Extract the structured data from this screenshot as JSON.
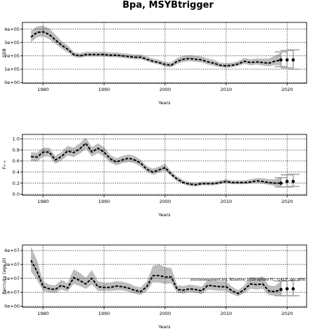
{
  "title": "Bpa, MSYBtrigger",
  "annotation": "stockassessment.org, NSsaithe_2019 update FC, r1417 , git: df0b",
  "colors": {
    "band": "#bdbdbd",
    "line": "#000000",
    "forecast": "#9e9e9e"
  },
  "chart_data": [
    {
      "type": "line",
      "name": "ssb",
      "title": "",
      "xlabel": "Years",
      "ylabel": "SSB",
      "xlim": [
        1976.6,
        2023.2
      ],
      "ylim": [
        -5000,
        450000
      ],
      "xticks": [
        1980,
        1990,
        2000,
        2010,
        2020
      ],
      "xtick_labels": [
        "1980",
        "1990",
        "2000",
        "2010",
        "2020"
      ],
      "yticks": [
        0,
        100000,
        200000,
        300000,
        400000
      ],
      "ytick_labels": [
        "0e+00",
        "1e+05",
        "2e+05",
        "3e+05",
        "4e+05"
      ],
      "grid": true,
      "x": [
        1978,
        1979,
        1980,
        1981,
        1982,
        1983,
        1984,
        1985,
        1986,
        1987,
        1988,
        1989,
        1990,
        1991,
        1992,
        1993,
        1994,
        1995,
        1996,
        1997,
        1998,
        1999,
        2000,
        2001,
        2002,
        2003,
        2004,
        2005,
        2006,
        2007,
        2008,
        2009,
        2010,
        2011,
        2012,
        2013,
        2014,
        2015,
        2016,
        2017,
        2018,
        2019
      ],
      "estimate": [
        340000,
        375000,
        380000,
        360000,
        320000,
        280000,
        250000,
        210000,
        200000,
        210000,
        210000,
        210000,
        210000,
        205000,
        205000,
        200000,
        195000,
        190000,
        190000,
        175000,
        160000,
        150000,
        135000,
        130000,
        160000,
        175000,
        180000,
        175000,
        170000,
        155000,
        145000,
        130000,
        125000,
        130000,
        140000,
        160000,
        150000,
        155000,
        150000,
        145000,
        160000,
        170000
      ],
      "lower": [
        300000,
        340000,
        345000,
        325000,
        290000,
        255000,
        225000,
        195000,
        185000,
        195000,
        195000,
        195000,
        195000,
        190000,
        190000,
        185000,
        180000,
        175000,
        175000,
        160000,
        145000,
        135000,
        120000,
        115000,
        140000,
        155000,
        160000,
        155000,
        150000,
        135000,
        125000,
        115000,
        110000,
        115000,
        125000,
        140000,
        130000,
        135000,
        128000,
        122000,
        132000,
        130000
      ],
      "upper": [
        385000,
        420000,
        425000,
        405000,
        360000,
        310000,
        280000,
        230000,
        220000,
        230000,
        230000,
        230000,
        230000,
        225000,
        225000,
        220000,
        215000,
        210000,
        210000,
        195000,
        180000,
        170000,
        155000,
        150000,
        185000,
        200000,
        205000,
        200000,
        195000,
        180000,
        170000,
        150000,
        145000,
        150000,
        160000,
        185000,
        175000,
        180000,
        180000,
        180000,
        200000,
        225000
      ],
      "forecast": {
        "x": [
          2019,
          2020,
          2021
        ],
        "estimate": [
          170000,
          170000,
          170000
        ],
        "lower": [
          120000,
          110000,
          100000
        ],
        "upper": [
          230000,
          240000,
          245000
        ]
      }
    },
    {
      "type": "line",
      "name": "fbar",
      "title": "",
      "xlabel": "Years",
      "ylabel": "F₃₋₆",
      "xlim": [
        1976.6,
        2023.2
      ],
      "ylim": [
        -0.02,
        1.08
      ],
      "xticks": [
        1980,
        1990,
        2000,
        2010,
        2020
      ],
      "xtick_labels": [
        "1980",
        "1990",
        "2000",
        "2010",
        "2020"
      ],
      "yticks": [
        0,
        0.2,
        0.4,
        0.6,
        0.8,
        1.0
      ],
      "ytick_labels": [
        "0.0",
        "0.2",
        "0.4",
        "0.6",
        "0.8",
        "1.0"
      ],
      "grid": true,
      "x": [
        1978,
        1979,
        1980,
        1981,
        1982,
        1983,
        1984,
        1985,
        1986,
        1987,
        1988,
        1989,
        1990,
        1991,
        1992,
        1993,
        1994,
        1995,
        1996,
        1997,
        1998,
        1999,
        2000,
        2001,
        2002,
        2003,
        2004,
        2005,
        2006,
        2007,
        2008,
        2009,
        2010,
        2011,
        2012,
        2013,
        2014,
        2015,
        2016,
        2017,
        2018,
        2019
      ],
      "estimate": [
        0.68,
        0.67,
        0.76,
        0.76,
        0.62,
        0.68,
        0.78,
        0.75,
        0.82,
        0.92,
        0.76,
        0.83,
        0.76,
        0.64,
        0.58,
        0.62,
        0.65,
        0.62,
        0.56,
        0.45,
        0.4,
        0.44,
        0.48,
        0.36,
        0.27,
        0.21,
        0.18,
        0.17,
        0.19,
        0.19,
        0.19,
        0.21,
        0.23,
        0.21,
        0.21,
        0.21,
        0.22,
        0.24,
        0.23,
        0.21,
        0.2,
        0.2
      ],
      "lower": [
        0.6,
        0.59,
        0.68,
        0.68,
        0.55,
        0.61,
        0.7,
        0.67,
        0.73,
        0.82,
        0.68,
        0.74,
        0.68,
        0.57,
        0.52,
        0.56,
        0.58,
        0.56,
        0.5,
        0.4,
        0.35,
        0.39,
        0.43,
        0.32,
        0.23,
        0.18,
        0.15,
        0.14,
        0.16,
        0.16,
        0.16,
        0.18,
        0.2,
        0.18,
        0.18,
        0.18,
        0.19,
        0.2,
        0.19,
        0.17,
        0.15,
        0.13
      ],
      "upper": [
        0.76,
        0.75,
        0.84,
        0.84,
        0.69,
        0.76,
        0.87,
        0.84,
        0.92,
        1.02,
        0.85,
        0.92,
        0.85,
        0.71,
        0.65,
        0.69,
        0.72,
        0.69,
        0.62,
        0.51,
        0.46,
        0.5,
        0.55,
        0.41,
        0.32,
        0.25,
        0.22,
        0.21,
        0.23,
        0.23,
        0.23,
        0.25,
        0.27,
        0.25,
        0.25,
        0.25,
        0.27,
        0.29,
        0.29,
        0.27,
        0.27,
        0.3
      ],
      "forecast": {
        "x": [
          2019,
          2020,
          2021
        ],
        "estimate": [
          0.2,
          0.23,
          0.23
        ],
        "lower": [
          0.13,
          0.13,
          0.14
        ],
        "upper": [
          0.3,
          0.35,
          0.36
        ]
      }
    },
    {
      "type": "line",
      "name": "recruitment",
      "title": "",
      "xlabel": "Years",
      "ylabel": "Recruits (age 0)",
      "xlim": [
        1976.6,
        2023.2
      ],
      "ylim": [
        -800000,
        44000000
      ],
      "xticks": [
        1980,
        1990,
        2000,
        2010,
        2020
      ],
      "xtick_labels": [
        "1980",
        "1990",
        "2000",
        "2010",
        "2020"
      ],
      "yticks": [
        0,
        10000000,
        20000000,
        30000000,
        40000000
      ],
      "ytick_labels": [
        "0e+00",
        "1e+07",
        "2e+07",
        "3e+07",
        "4e+07"
      ],
      "grid": true,
      "x": [
        1978,
        1979,
        1980,
        1981,
        1982,
        1983,
        1984,
        1985,
        1986,
        1987,
        1988,
        1989,
        1990,
        1991,
        1992,
        1993,
        1994,
        1995,
        1996,
        1997,
        1998,
        1999,
        2000,
        2001,
        2002,
        2003,
        2004,
        2005,
        2006,
        2007,
        2008,
        2009,
        2010,
        2011,
        2012,
        2013,
        2014,
        2015,
        2016,
        2017,
        2018,
        2019
      ],
      "estimate": [
        33000000,
        25000000,
        14000000,
        12500000,
        12000000,
        15000000,
        13000000,
        20500000,
        18500000,
        16000000,
        20000000,
        14000000,
        13500000,
        13500000,
        14500000,
        14000000,
        13000000,
        11500000,
        10500000,
        14000000,
        22000000,
        22000000,
        21000000,
        21000000,
        12000000,
        11500000,
        12500000,
        12000000,
        11000000,
        15000000,
        14500000,
        14000000,
        14000000,
        11000000,
        9000000,
        12000000,
        16000000,
        15500000,
        16000000,
        11000000,
        10500000,
        12000000
      ],
      "lower": [
        25000000,
        19000000,
        11000000,
        10000000,
        9500000,
        12000000,
        10500000,
        16000000,
        14500000,
        12500000,
        15500000,
        11000000,
        11000000,
        11000000,
        11500000,
        11500000,
        10500000,
        9000000,
        8000000,
        11000000,
        17000000,
        17000000,
        16000000,
        16500000,
        9500000,
        9000000,
        10000000,
        9500000,
        8500000,
        12000000,
        11500000,
        11000000,
        11000000,
        8500000,
        7000000,
        9500000,
        12500000,
        12000000,
        12500000,
        8000000,
        7500000,
        7500000
      ],
      "upper": [
        43000000,
        33000000,
        18000000,
        15500000,
        15000000,
        19000000,
        16500000,
        26500000,
        24000000,
        20500000,
        26000000,
        18000000,
        17000000,
        17000000,
        18000000,
        17500000,
        16500000,
        14500000,
        13500000,
        18000000,
        29000000,
        30000000,
        28000000,
        27500000,
        15000000,
        14500000,
        15500000,
        15000000,
        14000000,
        19000000,
        18500000,
        18000000,
        18000000,
        14000000,
        11500000,
        15000000,
        21000000,
        20500000,
        21500000,
        15000000,
        14500000,
        18000000
      ],
      "forecast": {
        "x": [
          2019,
          2020,
          2021
        ],
        "estimate": [
          12000000,
          12500000,
          12500000
        ],
        "lower": [
          7500000,
          7500000,
          7500000
        ],
        "upper": [
          18000000,
          18500000,
          18500000
        ]
      }
    }
  ]
}
